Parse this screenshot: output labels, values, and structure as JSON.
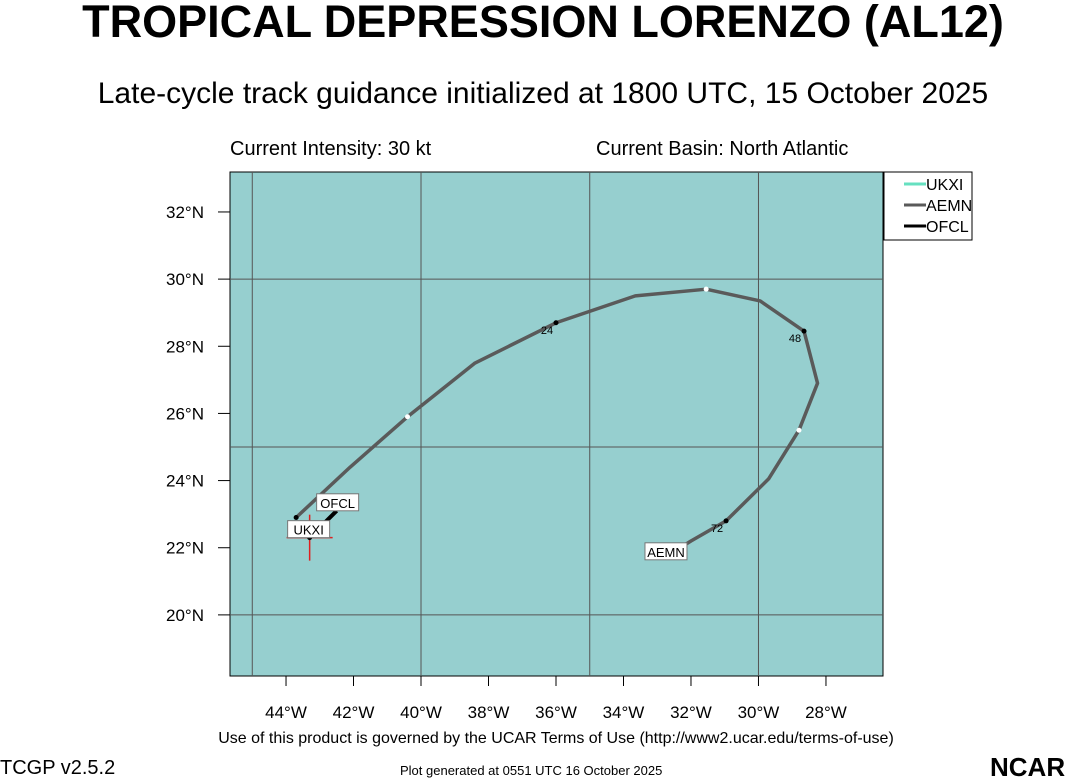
{
  "title": "TROPICAL DEPRESSION LORENZO (AL12)",
  "subtitle": "Late-cycle track guidance initialized at 1800 UTC, 15 October 2025",
  "current_intensity": "Current Intensity: 30 kt",
  "current_basin": "Current Basin: North Atlantic",
  "terms": "Use of this product is governed by the UCAR Terms of Use (http://www2.ucar.edu/terms-of-use)",
  "version": "TCGP v2.5.2",
  "generated": "Plot generated at 0551 UTC   16 October 2025",
  "logo": "NCAR",
  "chart_data": {
    "type": "line",
    "xlim": [
      -45.66,
      -26.31
    ],
    "ylim": [
      18.18,
      33.19
    ],
    "xticks": [
      {
        "v": -44,
        "label": "44°W"
      },
      {
        "v": -42,
        "label": "42°W"
      },
      {
        "v": -40,
        "label": "40°W"
      },
      {
        "v": -38,
        "label": "38°W"
      },
      {
        "v": -36,
        "label": "36°W"
      },
      {
        "v": -34,
        "label": "34°W"
      },
      {
        "v": -32,
        "label": "32°W"
      },
      {
        "v": -30,
        "label": "30°W"
      },
      {
        "v": -28,
        "label": "28°W"
      }
    ],
    "yticks": [
      {
        "v": 32,
        "label": "32°N"
      },
      {
        "v": 30,
        "label": "30°N"
      },
      {
        "v": 28,
        "label": "28°N"
      },
      {
        "v": 26,
        "label": "26°N"
      },
      {
        "v": 24,
        "label": "24°N"
      },
      {
        "v": 22,
        "label": "22°N"
      },
      {
        "v": 20,
        "label": "20°N"
      }
    ],
    "grid_lon": [
      -45,
      -40,
      -35,
      -30
    ],
    "grid_lat": [
      30,
      25,
      20
    ],
    "storm_position": [
      -43.3,
      22.3
    ],
    "colors": {
      "ocean": "#96cfcf",
      "UKXI": "#66e0c0",
      "AEMN": "#5a5a5a",
      "OFCL": "#000000",
      "marker": "#e02020"
    },
    "legend": [
      "UKXI",
      "AEMN",
      "OFCL"
    ],
    "series": [
      {
        "name": "AEMN",
        "points": [
          [
            -43.7,
            22.9
          ],
          [
            -42.1,
            24.4
          ],
          [
            -40.4,
            25.9
          ],
          [
            -38.4,
            27.5
          ],
          [
            -36.0,
            28.7
          ],
          [
            -33.65,
            29.5
          ],
          [
            -31.55,
            29.7
          ],
          [
            -29.95,
            29.35
          ],
          [
            -28.65,
            28.45
          ],
          [
            -28.25,
            26.9
          ],
          [
            -28.8,
            25.5
          ],
          [
            -29.7,
            24.05
          ],
          [
            -30.96,
            22.8
          ],
          [
            -32.0,
            22.2
          ],
          [
            -32.8,
            21.7
          ]
        ],
        "hour_marks": [
          {
            "i": 0,
            "h": "",
            "fill": "black"
          },
          {
            "i": 2,
            "h": "",
            "fill": "white"
          },
          {
            "i": 4,
            "h": "24",
            "fill": "black"
          },
          {
            "i": 6,
            "h": "",
            "fill": "white"
          },
          {
            "i": 8,
            "h": "48",
            "fill": "black"
          },
          {
            "i": 10,
            "h": "",
            "fill": "white"
          },
          {
            "i": 12,
            "h": "72",
            "fill": "black"
          }
        ],
        "end_label": "AEMN"
      },
      {
        "name": "OFCL",
        "points": [
          [
            -43.3,
            22.3
          ],
          [
            -42.5,
            23.1
          ]
        ],
        "end_label": "OFCL"
      },
      {
        "name": "UKXI",
        "points": [
          [
            -43.3,
            22.3
          ]
        ],
        "end_label": "UKXI"
      }
    ]
  }
}
